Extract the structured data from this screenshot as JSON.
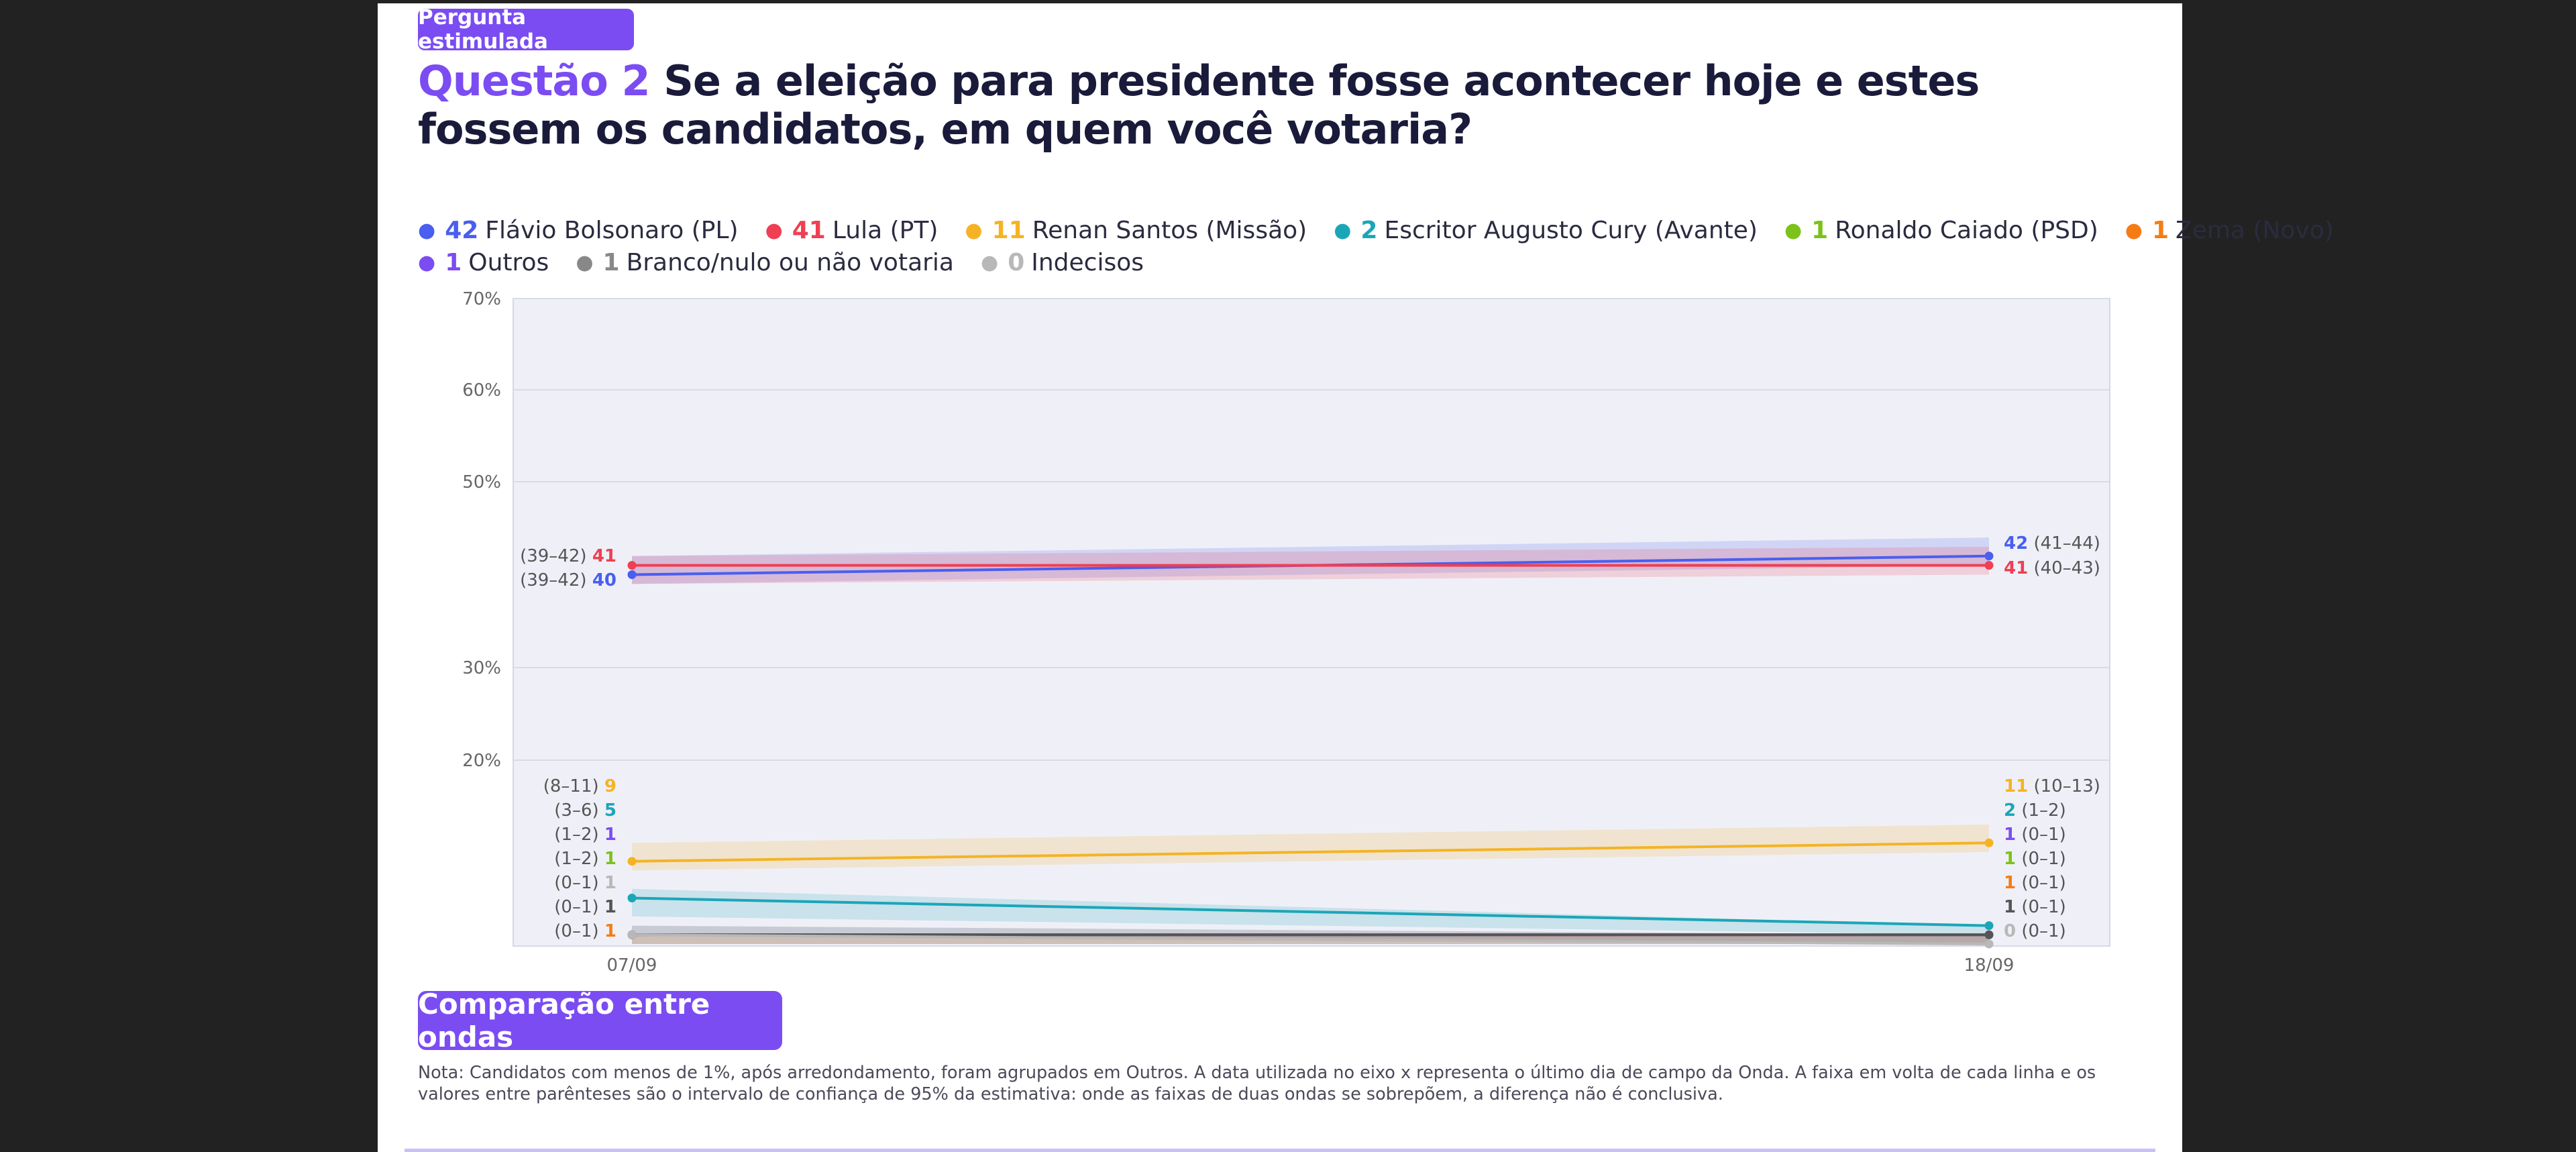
{
  "header": {
    "tag": "Pergunta estimulada",
    "question_number": "Questão 2",
    "question_text": "Se a eleição para presidente fosse acontecer hoje e estes fossem os candidatos, em quem você votaria?"
  },
  "legend_rows": [
    [
      {
        "value": "42",
        "label": "Flávio Bolsonaro (PL)",
        "color": "#4a5ef0"
      },
      {
        "value": "41",
        "label": "Lula (PT)",
        "color": "#ef3f52"
      },
      {
        "value": "11",
        "label": "Renan Santos (Missão)",
        "color": "#f5b324"
      },
      {
        "value": "2",
        "label": "Escritor Augusto Cury (Avante)",
        "color": "#1ba6b8"
      },
      {
        "value": "1",
        "label": "Ronaldo Caiado (PSD)",
        "color": "#7cc21a"
      },
      {
        "value": "1",
        "label": "Zema (Novo)",
        "color": "#f57c14"
      }
    ],
    [
      {
        "value": "1",
        "label": "Outros",
        "color": "#7b4cf2"
      },
      {
        "value": "1",
        "label": "Branco/nulo ou não votaria",
        "color": "#888888"
      },
      {
        "value": "0",
        "label": "Indecisos",
        "color": "#b8b8b8"
      }
    ]
  ],
  "chart_data": {
    "type": "line",
    "x": [
      "07/09",
      "18/09"
    ],
    "ylim": [
      0,
      70
    ],
    "y_ticks": [
      "70%",
      "60%",
      "50%",
      "30%",
      "20%"
    ],
    "y_tick_values": [
      70,
      60,
      50,
      30,
      20
    ],
    "grid": true,
    "legend_position": "top",
    "series": [
      {
        "name": "Flávio Bolsonaro (PL)",
        "color": "#4a5ef0",
        "values": [
          40,
          42
        ],
        "ci": [
          [
            39,
            42
          ],
          [
            41,
            44
          ]
        ]
      },
      {
        "name": "Lula (PT)",
        "color": "#ef3f52",
        "values": [
          41,
          41
        ],
        "ci": [
          [
            39,
            42
          ],
          [
            40,
            43
          ]
        ]
      },
      {
        "name": "Renan Santos (Missão)",
        "color": "#f5b324",
        "values": [
          9,
          11
        ],
        "ci": [
          [
            8,
            11
          ],
          [
            10,
            13
          ]
        ]
      },
      {
        "name": "Escritor Augusto Cury (Avante)",
        "color": "#1ba6b8",
        "values": [
          5,
          2
        ],
        "ci": [
          [
            3,
            6
          ],
          [
            1,
            2
          ]
        ]
      },
      {
        "name": "Ronaldo Caiado (PSD)",
        "color": "#7cc21a",
        "values": [
          1,
          1
        ],
        "ci": [
          [
            1,
            2
          ],
          [
            0,
            1
          ]
        ]
      },
      {
        "name": "Zema (Novo)",
        "color": "#f57c14",
        "values": [
          1,
          1
        ],
        "ci": [
          [
            0,
            1
          ],
          [
            0,
            1
          ]
        ]
      },
      {
        "name": "Outros",
        "color": "#7b4cf2",
        "values": [
          1,
          1
        ],
        "ci": [
          [
            1,
            2
          ],
          [
            0,
            1
          ]
        ]
      },
      {
        "name": "Branco/nulo ou não votaria",
        "color": "#555555",
        "values": [
          1,
          1
        ],
        "ci": [
          [
            0,
            1
          ],
          [
            0,
            1
          ]
        ]
      },
      {
        "name": "Indecisos",
        "color": "#b8b8b8",
        "values": [
          1,
          0
        ],
        "ci": [
          [
            0,
            1
          ],
          [
            0,
            1
          ]
        ]
      }
    ],
    "left_labels": [
      {
        "ci": "(39–42)",
        "value": "41",
        "color": "#ef3f52"
      },
      {
        "ci": "(39–42)",
        "value": "40",
        "color": "#4a5ef0"
      },
      {
        "ci": "(8–11)",
        "value": "9",
        "color": "#f5b324"
      },
      {
        "ci": "(3–6)",
        "value": "5",
        "color": "#1ba6b8"
      },
      {
        "ci": "(1–2)",
        "value": "1",
        "color": "#7b4cf2"
      },
      {
        "ci": "(1–2)",
        "value": "1",
        "color": "#7cc21a"
      },
      {
        "ci": "(0–1)",
        "value": "1",
        "color": "#b8b8b8"
      },
      {
        "ci": "(0–1)",
        "value": "1",
        "color": "#555555"
      },
      {
        "ci": "(0–1)",
        "value": "1",
        "color": "#f57c14"
      }
    ],
    "right_labels": [
      {
        "ci": "(41–44)",
        "value": "42",
        "color": "#4a5ef0"
      },
      {
        "ci": "(40–43)",
        "value": "41",
        "color": "#ef3f52"
      },
      {
        "ci": "(10–13)",
        "value": "11",
        "color": "#f5b324"
      },
      {
        "ci": "(1–2)",
        "value": "2",
        "color": "#1ba6b8"
      },
      {
        "ci": "(0–1)",
        "value": "1",
        "color": "#7b4cf2"
      },
      {
        "ci": "(0–1)",
        "value": "1",
        "color": "#7cc21a"
      },
      {
        "ci": "(0–1)",
        "value": "1",
        "color": "#f57c14"
      },
      {
        "ci": "(0–1)",
        "value": "1",
        "color": "#555555"
      },
      {
        "ci": "(0–1)",
        "value": "0",
        "color": "#b8b8b8"
      }
    ]
  },
  "compare_button": "Comparação entre ondas",
  "footnote": "Nota: Candidatos com menos de 1%, após arredondamento, foram agrupados em Outros. A data utilizada no eixo x representa o último dia de campo da Onda. A faixa em volta de cada linha e os valores entre parênteses são o intervalo de confiança de 95% da estimativa: onde as faixas de duas ondas se sobrepõem, a diferença não é conclusiva."
}
